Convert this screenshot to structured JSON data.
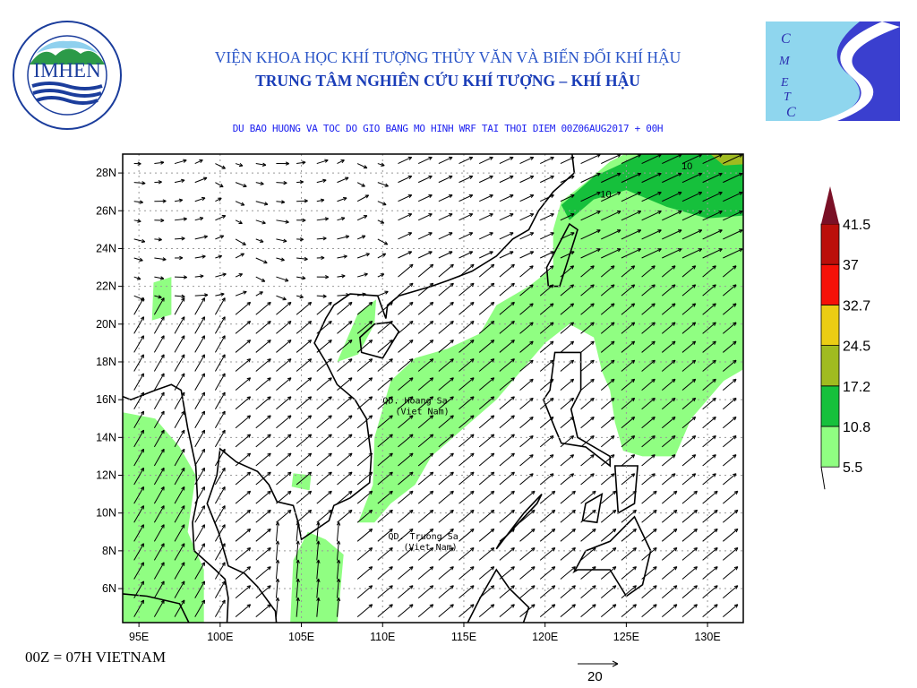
{
  "header": {
    "institute": "VIỆN KHOA HỌC KHÍ TƯỢNG THỦY VĂN VÀ BIẾN ĐỔI KHÍ HẬU",
    "center": "TRUNG TÂM NGHIÊN CỨU KHÍ TƯỢNG – KHÍ HẬU",
    "subtitle": "DU BAO HUONG VA TOC DO GIO BANG MO HINH WRF TAI THOI DIEM  00Z06AUG2017 + 00H"
  },
  "logos": {
    "left": {
      "text": "IMHEN",
      "ring_text": "VIỆN KHOA HỌC · KHÍ TƯỢNG THỦY VĂN VÀ BIẾN ĐỔI KHÍ HẬU"
    },
    "right": {
      "text": "CMETC"
    }
  },
  "map": {
    "lon_range": [
      94,
      132.2
    ],
    "lat_range": [
      4.2,
      29
    ],
    "lon_ticks": [
      "95E",
      "100E",
      "105E",
      "110E",
      "115E",
      "120E",
      "125E",
      "130E"
    ],
    "lon_tick_values": [
      95,
      100,
      105,
      110,
      115,
      120,
      125,
      130
    ],
    "lat_ticks": [
      "6N",
      "8N",
      "10N",
      "12N",
      "14N",
      "16N",
      "18N",
      "20N",
      "22N",
      "24N",
      "26N",
      "28N"
    ],
    "lat_tick_values": [
      6,
      8,
      10,
      12,
      14,
      16,
      18,
      20,
      22,
      24,
      26,
      28
    ],
    "annotations": [
      {
        "line1": "QD. Hoang Sa",
        "line2": "(Viet Nam)",
        "lon": 112,
        "lat": 15.8
      },
      {
        "line1": "QD. Truong Sa",
        "line2": "(Viet Nam)",
        "lon": 112.5,
        "lat": 8.6
      }
    ],
    "contour_labels": [
      {
        "text": "10",
        "lon": 128.4,
        "lat": 28.2
      },
      {
        "text": "10",
        "lon": 123.4,
        "lat": 26.7
      }
    ],
    "reference_vector": "20"
  },
  "colorbar": {
    "levels": [
      "5.5",
      "10.8",
      "17.2",
      "24.5",
      "32.7",
      "37",
      "41.5"
    ],
    "colors": [
      "#90fe82",
      "#16c03c",
      "#a0bb20",
      "#ebcd14",
      "#f51108",
      "#bb0f0a",
      "#7a1026"
    ]
  },
  "note": "00Z = 07H VIETNAM"
}
